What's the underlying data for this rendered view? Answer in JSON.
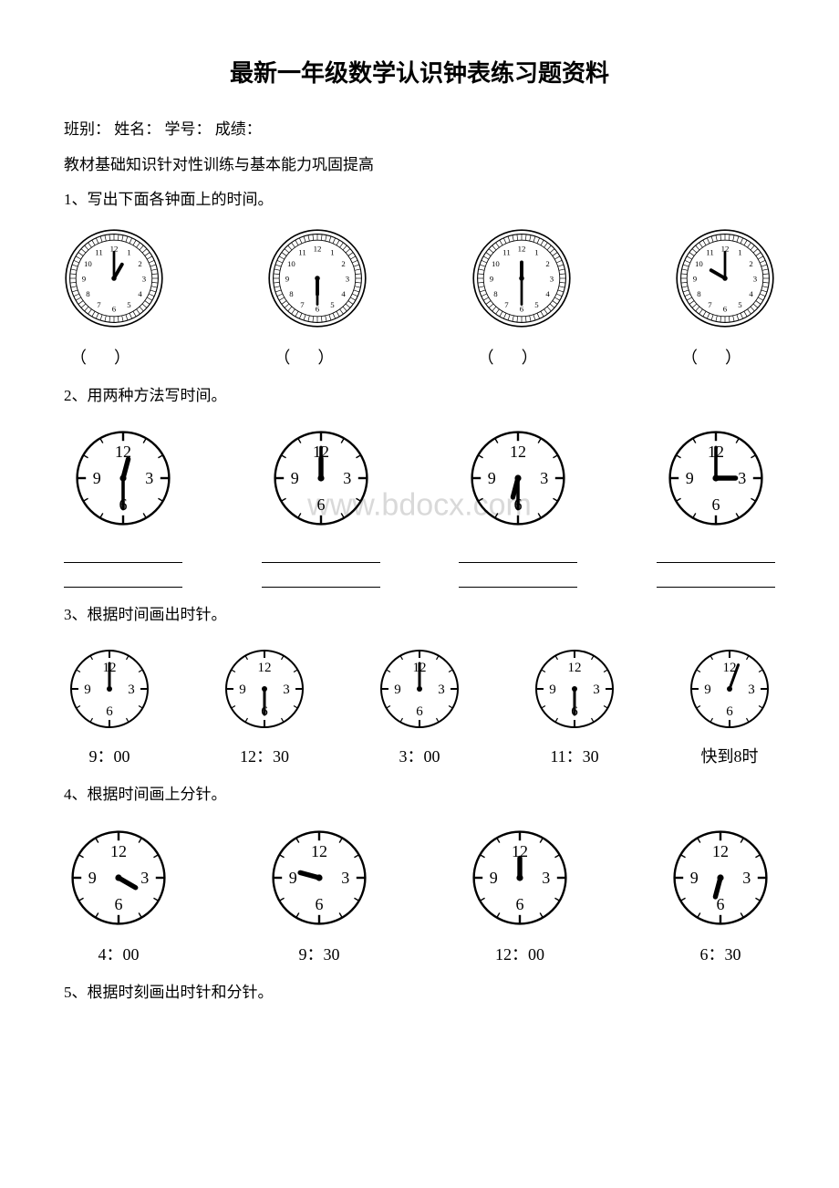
{
  "title": "最新一年级数学认识钟表练习题资料",
  "header_line": "班别：  姓名：  学号：  成绩：",
  "subheader": "教材基础知识针对性训练与基本能力巩固提高",
  "q1": {
    "prompt": "1、写出下面各钟面上的时间。",
    "clocks": [
      {
        "hour_angle": 30,
        "minute_angle": 0,
        "style": "fancy"
      },
      {
        "hour_angle": 180,
        "minute_angle": 180,
        "style": "fancy"
      },
      {
        "hour_angle": 0,
        "minute_angle": 180,
        "style": "fancy"
      },
      {
        "hour_angle": 300,
        "minute_angle": 0,
        "style": "fancy"
      }
    ],
    "paren": "（　　　）"
  },
  "q2": {
    "prompt": "2、用两种方法写时间。",
    "clocks": [
      {
        "hour_angle": 15,
        "minute_angle": 180,
        "style": "simple"
      },
      {
        "hour_angle": 0,
        "minute_angle": 0,
        "style": "simple"
      },
      {
        "hour_angle": 195,
        "minute_angle": 180,
        "style": "simple"
      },
      {
        "hour_angle": 90,
        "minute_angle": 0,
        "style": "simple"
      }
    ],
    "watermark": "www.bdocx.com"
  },
  "q3": {
    "prompt": "3、根据时间画出时针。",
    "clocks": [
      {
        "hour_angle": null,
        "minute_angle": 0,
        "style": "simple",
        "label": "9：00"
      },
      {
        "hour_angle": null,
        "minute_angle": 180,
        "style": "simple",
        "label": "12：30"
      },
      {
        "hour_angle": null,
        "minute_angle": 0,
        "style": "simple",
        "label": "3：00"
      },
      {
        "hour_angle": null,
        "minute_angle": 180,
        "style": "simple",
        "label": "11：30"
      },
      {
        "hour_angle": null,
        "minute_angle": 20,
        "style": "simple",
        "label": "快到8时"
      }
    ]
  },
  "q4": {
    "prompt": "4、根据时间画上分针。",
    "clocks": [
      {
        "hour_angle": 120,
        "minute_angle": null,
        "style": "simple",
        "label": "4：00"
      },
      {
        "hour_angle": 285,
        "minute_angle": null,
        "style": "simple",
        "label": "9：30"
      },
      {
        "hour_angle": 0,
        "minute_angle": null,
        "style": "simple",
        "label": "12：00"
      },
      {
        "hour_angle": 195,
        "minute_angle": null,
        "style": "simple",
        "label": "6：30"
      }
    ]
  },
  "q5": {
    "prompt": "5、根据时刻画出时针和分针。"
  },
  "style": {
    "fancy_clock_size": 110,
    "simple_clock_size": 120,
    "simple_clock_size_5": 100,
    "clock_stroke": "#000000",
    "bg": "#ffffff"
  }
}
